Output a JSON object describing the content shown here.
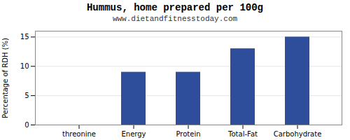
{
  "chart_data": {
    "type": "bar",
    "title": "Hummus, home prepared per 100g",
    "subtitle": "www.dietandfitnesstoday.com",
    "categories": [
      "threonine",
      "Energy",
      "Protein",
      "Total-Fat",
      "Carbohydrate"
    ],
    "values": [
      0,
      9,
      9,
      13,
      15
    ],
    "color": "#2e4d9b",
    "ylabel": "Percentage of RDH (%)",
    "ylim": [
      0,
      16
    ],
    "yticks": [
      0,
      5,
      10,
      15
    ],
    "grid": true
  }
}
